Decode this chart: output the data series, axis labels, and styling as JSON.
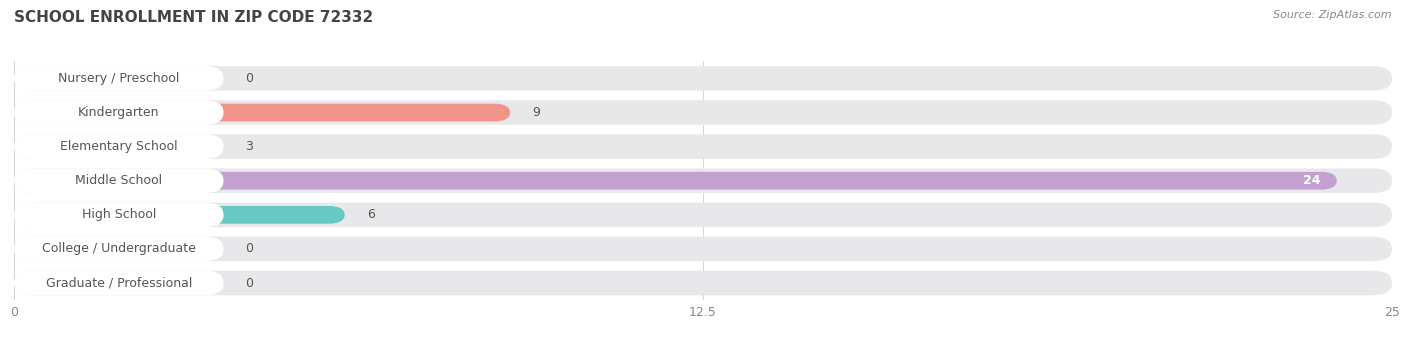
{
  "title": "SCHOOL ENROLLMENT IN ZIP CODE 72332",
  "source": "Source: ZipAtlas.com",
  "categories": [
    "Nursery / Preschool",
    "Kindergarten",
    "Elementary School",
    "Middle School",
    "High School",
    "College / Undergraduate",
    "Graduate / Professional"
  ],
  "values": [
    0,
    9,
    3,
    24,
    6,
    0,
    0
  ],
  "bar_colors": [
    "#f5c9a0",
    "#f0948a",
    "#a8c8f0",
    "#c4a0d0",
    "#68c8c4",
    "#c0b8e8",
    "#f7a8c0"
  ],
  "row_bg_colors": [
    "#f0f0f0",
    "#f0f0f0",
    "#f0f0f0",
    "#f0f0f0",
    "#f0f0f0",
    "#f0f0f0",
    "#f0f0f0"
  ],
  "xlim": [
    0,
    25
  ],
  "xticks": [
    0,
    12.5,
    25
  ],
  "bg_color": "#ffffff",
  "title_color": "#444444",
  "label_color": "#555555",
  "title_fontsize": 11,
  "label_fontsize": 9,
  "value_fontsize": 9
}
